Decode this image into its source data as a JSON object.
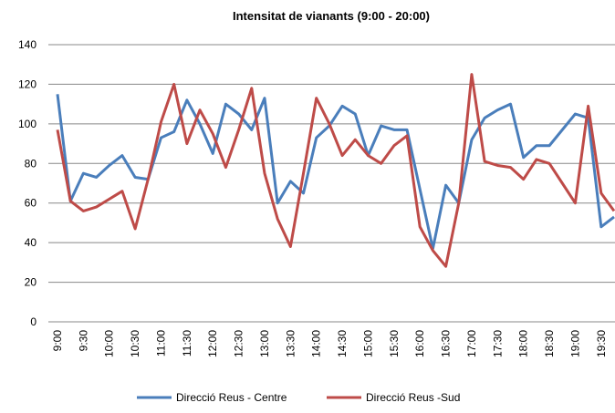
{
  "chart_data": {
    "type": "line",
    "title": "Intensitat de vianants (9:00 - 20:00)",
    "categories": [
      "9:00",
      null,
      "9:30",
      null,
      "10:00",
      null,
      "10:30",
      null,
      "11:00",
      null,
      "11:30",
      null,
      "12:00",
      null,
      "12:30",
      null,
      "13:00",
      null,
      "13:30",
      null,
      "14:00",
      null,
      "14:30",
      null,
      "15:00",
      null,
      "15:30",
      null,
      "16:00",
      null,
      "16:30",
      null,
      "17:00",
      null,
      "17:30",
      null,
      "18:00",
      null,
      "18:30",
      null,
      "19:00",
      null,
      "19:30",
      null
    ],
    "series": [
      {
        "name": "Direcció Reus - Centre",
        "color": "#4a7ebb",
        "values": [
          115,
          61,
          75,
          73,
          79,
          84,
          73,
          72,
          93,
          96,
          112,
          100,
          85,
          110,
          105,
          97,
          113,
          60,
          71,
          65,
          93,
          99,
          109,
          105,
          84,
          99,
          97,
          97,
          67,
          37,
          69,
          60,
          92,
          103,
          107,
          110,
          83,
          89,
          89,
          97,
          105,
          103,
          48,
          53
        ]
      },
      {
        "name": "Direcció Reus -Sud",
        "color": "#be4b48",
        "values": [
          97,
          61,
          56,
          58,
          62,
          66,
          47,
          72,
          101,
          120,
          90,
          107,
          95,
          78,
          97,
          118,
          75,
          52,
          38,
          75,
          113,
          100,
          84,
          92,
          84,
          80,
          89,
          94,
          48,
          36,
          28,
          60,
          125,
          81,
          79,
          78,
          72,
          82,
          80,
          70,
          60,
          109,
          65,
          56
        ]
      }
    ],
    "ylim": [
      0,
      140
    ],
    "yticks": [
      0,
      20,
      40,
      60,
      80,
      100,
      120,
      140
    ],
    "grid": true
  }
}
